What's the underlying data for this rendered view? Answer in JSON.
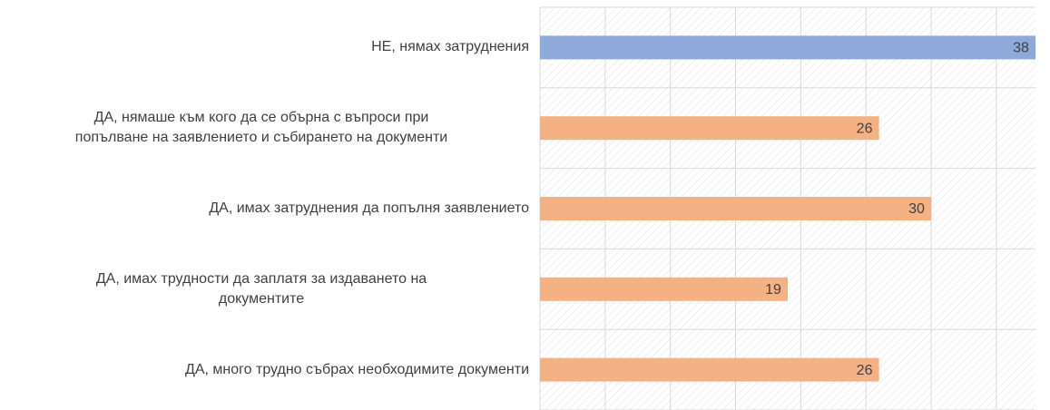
{
  "chart_data": {
    "type": "barh",
    "categories": [
      "НЕ, нямах затруднения",
      "ДА, нямаше към кого да се обърна с въпроси при\nпопълване на заявлението и събирането на документи",
      "ДА, имах затруднения да попълня заявлението",
      "ДА, имах трудности да заплатя за издаването на\nдокументите",
      "ДА, много трудно събрах необходимите документи"
    ],
    "values": [
      38,
      26,
      30,
      19,
      26
    ],
    "colors": [
      "#8eaadb",
      "#f4b183",
      "#f4b183",
      "#f4b183",
      "#f4b183"
    ],
    "xlim": [
      0,
      38
    ],
    "xticks": [
      0,
      5,
      10,
      15,
      20,
      25,
      30,
      35
    ],
    "grid": true
  }
}
